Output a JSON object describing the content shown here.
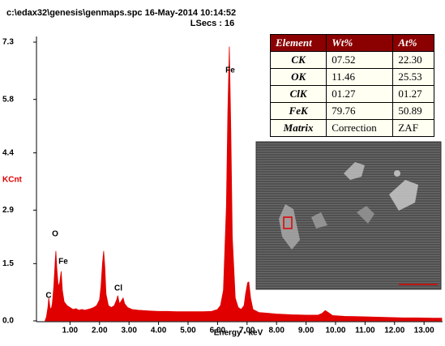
{
  "chart_data": {
    "type": "area",
    "subtitle": "c:\\edax32\\genesis\\genmaps.spc 16-May-2014 10:14:52",
    "title": "LSecs : 16",
    "x_label": "Energy - keV",
    "y_label": "KCnt",
    "color": "#e00000",
    "xlim": [
      0,
      13.6
    ],
    "ylim": [
      0,
      7.3
    ],
    "xticks": [
      {
        "value": 1,
        "label": "1.00"
      },
      {
        "value": 2,
        "label": "2.00"
      },
      {
        "value": 3,
        "label": "3.00"
      },
      {
        "value": 4,
        "label": "4.00"
      },
      {
        "value": 5,
        "label": "5.00"
      },
      {
        "value": 6,
        "label": "6.00"
      },
      {
        "value": 7,
        "label": "7.00"
      },
      {
        "value": 8,
        "label": "8.00"
      },
      {
        "value": 9,
        "label": "9.00"
      },
      {
        "value": 10,
        "label": "10.00"
      },
      {
        "value": 11,
        "label": "11.00"
      },
      {
        "value": 12,
        "label": "12.00"
      },
      {
        "value": 13,
        "label": "13.00"
      }
    ],
    "yticks": [
      {
        "value": 0,
        "label": "0.0"
      },
      1.5,
      2.9,
      4.4,
      5.8,
      7.3
    ],
    "annotations": [
      "Fe",
      "O",
      "Fe",
      "C",
      "Cl"
    ],
    "x": [
      0.15,
      0.2,
      0.25,
      0.28,
      0.32,
      0.36,
      0.4,
      0.45,
      0.5,
      0.52,
      0.55,
      0.6,
      0.65,
      0.7,
      0.74,
      0.8,
      0.9,
      1.0,
      1.1,
      1.2,
      1.3,
      1.4,
      1.5,
      1.6,
      1.7,
      1.8,
      1.9,
      2.0,
      2.05,
      2.1,
      2.14,
      2.18,
      2.22,
      2.3,
      2.4,
      2.5,
      2.58,
      2.62,
      2.67,
      2.72,
      2.8,
      2.85,
      2.95,
      3.1,
      3.3,
      3.5,
      3.7,
      4.0,
      4.3,
      4.6,
      4.9,
      5.2,
      5.5,
      5.8,
      6.0,
      6.1,
      6.2,
      6.3,
      6.35,
      6.4,
      6.45,
      6.5,
      6.6,
      6.7,
      6.8,
      6.9,
      6.95,
      7.02,
      7.06,
      7.12,
      7.2,
      7.4,
      7.7,
      8.0,
      8.5,
      9.0,
      9.4,
      9.55,
      9.65,
      9.75,
      9.9,
      10.3,
      10.8,
      11.3,
      11.8,
      12.3,
      12.8,
      13.3,
      13.6
    ],
    "values": [
      0,
      0.1,
      0.35,
      0.6,
      0.35,
      0.3,
      0.45,
      0.9,
      1.6,
      1.83,
      1.4,
      0.9,
      1.0,
      1.3,
      0.8,
      0.5,
      0.4,
      0.35,
      0.3,
      0.32,
      0.28,
      0.3,
      0.28,
      0.3,
      0.32,
      0.35,
      0.4,
      0.55,
      0.9,
      1.5,
      1.83,
      1.4,
      0.7,
      0.4,
      0.35,
      0.4,
      0.55,
      0.66,
      0.45,
      0.5,
      0.6,
      0.45,
      0.35,
      0.3,
      0.28,
      0.27,
      0.26,
      0.25,
      0.25,
      0.24,
      0.24,
      0.24,
      0.24,
      0.25,
      0.3,
      0.4,
      0.8,
      3.0,
      5.5,
      7.18,
      5.0,
      2.2,
      0.6,
      0.35,
      0.3,
      0.4,
      0.7,
      1.0,
      1.02,
      0.6,
      0.3,
      0.22,
      0.2,
      0.18,
      0.16,
      0.15,
      0.15,
      0.2,
      0.27,
      0.22,
      0.14,
      0.12,
      0.11,
      0.1,
      0.09,
      0.08,
      0.08,
      0.07,
      0.07
    ]
  },
  "table": {
    "header": [
      "Element",
      "Wt%",
      "At%"
    ],
    "rows": [
      [
        "CK",
        "07.52",
        "22.30"
      ],
      [
        "OK",
        "11.46",
        "25.53"
      ],
      [
        "ClK",
        "01.27",
        "01.27"
      ],
      [
        "FeK",
        "79.76",
        "50.89"
      ],
      [
        "Matrix",
        "Correction",
        "ZAF"
      ]
    ]
  }
}
